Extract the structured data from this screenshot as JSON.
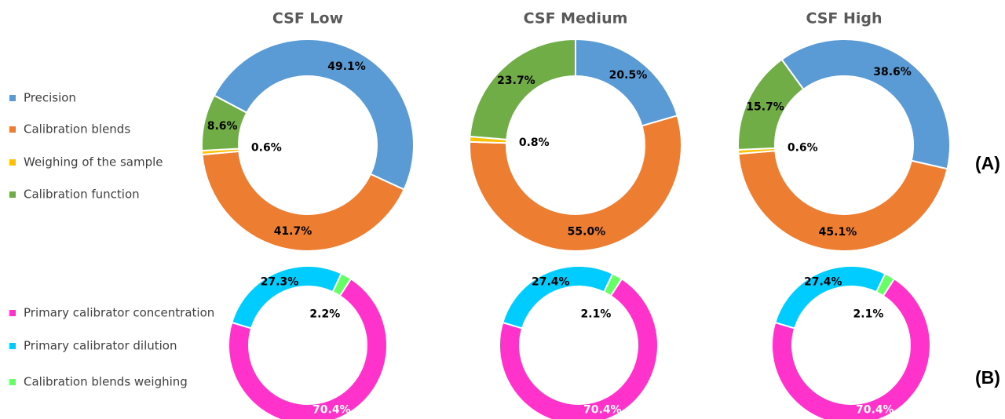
{
  "chart_data": [
    {
      "type": "donut",
      "title": "CSF Low",
      "categories": [
        "Precision",
        "Calibration blends",
        "Weighing of the sample",
        "Calibration function"
      ],
      "values": [
        49.1,
        41.7,
        0.6,
        8.6
      ],
      "value_labels": [
        "49.1%",
        "41.7%",
        "0.6%",
        "8.6%"
      ],
      "colors": [
        "#5b9bd5",
        "#ed7d31",
        "#ffc000",
        "#70ad47"
      ],
      "value_label_colors": [
        "#000000",
        "#000000",
        "#000000",
        "#000000"
      ],
      "start_angle": -62,
      "legend": "left"
    },
    {
      "type": "donut",
      "title": "CSF Medium",
      "values": [
        20.5,
        55.0,
        0.8,
        23.7
      ],
      "value_labels": [
        "20.5%",
        "55.0%",
        "0.8%",
        "23.7%"
      ],
      "colors": [
        "#5b9bd5",
        "#ed7d31",
        "#ffc000",
        "#70ad47"
      ],
      "value_label_colors": [
        "#000000",
        "#000000",
        "#000000",
        "#000000"
      ],
      "start_angle": 0
    },
    {
      "type": "donut",
      "title": "CSF High",
      "values": [
        38.6,
        45.1,
        0.6,
        15.7
      ],
      "value_labels": [
        "38.6%",
        "45.1%",
        "0.6%",
        "15.7%"
      ],
      "colors": [
        "#5b9bd5",
        "#ed7d31",
        "#ffc000",
        "#70ad47"
      ],
      "value_label_colors": [
        "#000000",
        "#000000",
        "#000000",
        "#000000"
      ],
      "start_angle": -36,
      "panel_label": "(A)"
    },
    {
      "type": "donut",
      "categories": [
        "Primary calibrator concentration",
        "Primary calibrator dilution",
        "Calibration blends weighing"
      ],
      "values": [
        70.4,
        27.3,
        2.2
      ],
      "value_labels": [
        "70.4%",
        "27.3%",
        "2.2%"
      ],
      "colors": [
        "#ff33cc",
        "#00ccff",
        "#66ff66"
      ],
      "value_label_colors": [
        "#ffffff",
        "#000000",
        "#000000"
      ],
      "start_angle": 33,
      "legend": "left"
    },
    {
      "type": "donut",
      "values": [
        70.4,
        27.4,
        2.1
      ],
      "value_labels": [
        "70.4%",
        "27.4%",
        "2.1%"
      ],
      "colors": [
        "#ff33cc",
        "#00ccff",
        "#66ff66"
      ],
      "value_label_colors": [
        "#ffffff",
        "#000000",
        "#000000"
      ],
      "start_angle": 33
    },
    {
      "type": "donut",
      "values": [
        70.4,
        27.4,
        2.1
      ],
      "value_labels": [
        "70.4%",
        "27.4%",
        "2.1%"
      ],
      "colors": [
        "#ff33cc",
        "#00ccff",
        "#66ff66"
      ],
      "value_label_colors": [
        "#ffffff",
        "#000000",
        "#000000"
      ],
      "start_angle": 33,
      "panel_label": "(B)"
    }
  ]
}
